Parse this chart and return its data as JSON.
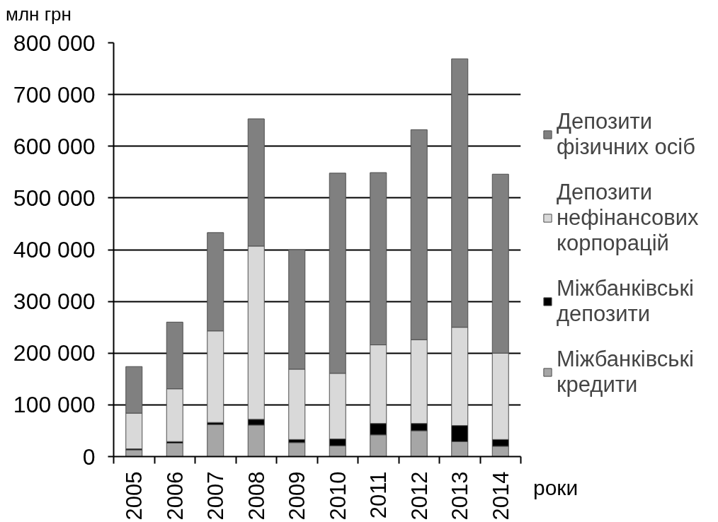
{
  "chart_data": {
    "type": "bar",
    "stacked": true,
    "ylabel": "млн грн",
    "xlabel": "роки",
    "categories": [
      "2005",
      "2006",
      "2007",
      "2008",
      "2009",
      "2010",
      "2011",
      "2012",
      "2013",
      "2014"
    ],
    "series": [
      {
        "name": "Міжбанківські кредити",
        "color": "#a6a6a6",
        "values": [
          13000,
          26000,
          62000,
          61000,
          27000,
          21000,
          42000,
          50000,
          29000,
          20000
        ]
      },
      {
        "name": "Міжбанківські депозити",
        "color": "#000000",
        "values": [
          2000,
          3000,
          4000,
          11000,
          6000,
          13000,
          22000,
          14000,
          31000,
          13000
        ]
      },
      {
        "name": "Депозити нефінансових корпорацій",
        "color": "#d9d9d9",
        "values": [
          69000,
          102000,
          177000,
          335000,
          136000,
          127000,
          152000,
          162000,
          190000,
          167000
        ]
      },
      {
        "name": "Депозити фізичних осіб",
        "color": "#808080",
        "values": [
          90000,
          129000,
          190000,
          246000,
          231000,
          387000,
          333000,
          406000,
          519000,
          346000
        ]
      }
    ],
    "ylim": [
      0,
      800000
    ],
    "yticks": [
      0,
      {
        "value": 100000,
        "label": "100 000"
      },
      {
        "value": 200000,
        "label": "200 000"
      },
      {
        "value": 300000,
        "label": "300 000"
      },
      {
        "value": 400000,
        "label": "400 000"
      },
      {
        "value": 500000,
        "label": "500 000"
      },
      {
        "value": 600000,
        "label": "600 000"
      },
      {
        "value": 700000,
        "label": "700 000"
      },
      {
        "value": 800000,
        "label": "800 000"
      }
    ],
    "grid": "y",
    "legend": "right"
  }
}
